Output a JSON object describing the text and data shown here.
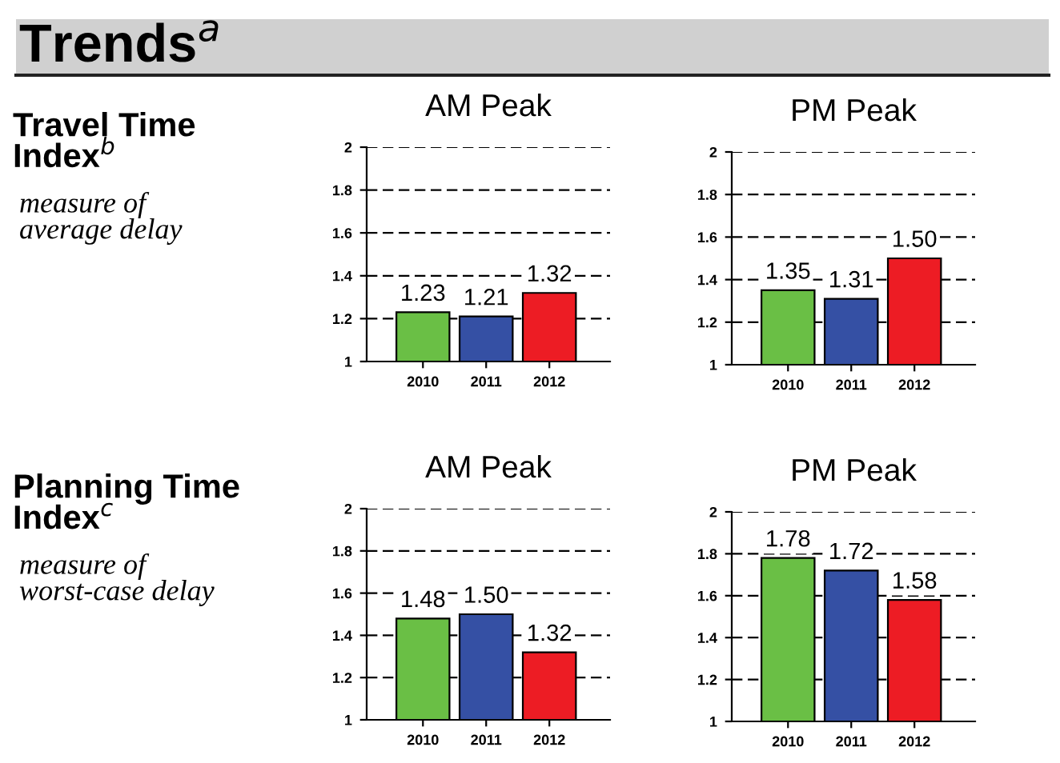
{
  "chart_data": [
    {
      "type": "bar",
      "title": "AM Peak",
      "categories": [
        "2010",
        "2011",
        "2012"
      ],
      "values": [
        1.23,
        1.21,
        1.32
      ],
      "value_labels": [
        "1.23",
        "1.21",
        "1.32"
      ],
      "colors": [
        "#6abf45",
        "#3550a4",
        "#ed1c24"
      ],
      "ylim": [
        1,
        2
      ],
      "yticks": [
        1,
        1.2,
        1.4,
        1.6,
        1.8,
        2
      ],
      "grid": "y",
      "annotations": [
        "Trends$^{a}$",
        "Travel Time\nIndex$^{b}$",
        "measure of\naverage delay"
      ]
    },
    {
      "type": "bar",
      "title": "PM Peak",
      "categories": [
        "2010",
        "2011",
        "2012"
      ],
      "values": [
        1.35,
        1.31,
        1.5
      ],
      "value_labels": [
        "1.35",
        "1.31",
        "1.50"
      ],
      "colors": [
        "#6abf45",
        "#3550a4",
        "#ed1c24"
      ],
      "ylim": [
        1,
        2
      ],
      "yticks": [
        1,
        1.2,
        1.4,
        1.6,
        1.8,
        2
      ],
      "grid": "y"
    },
    {
      "type": "bar",
      "title": "AM Peak",
      "categories": [
        "2010",
        "2011",
        "2012"
      ],
      "values": [
        1.48,
        1.5,
        1.32
      ],
      "value_labels": [
        "1.48",
        "1.50",
        "1.32"
      ],
      "colors": [
        "#6abf45",
        "#3550a4",
        "#ed1c24"
      ],
      "ylim": [
        1,
        2
      ],
      "yticks": [
        1,
        1.2,
        1.4,
        1.6,
        1.8,
        2
      ],
      "grid": "y",
      "annotations": [
        "Planning Time\nIndex$^{c}$",
        "measure of\nworst-case delay"
      ]
    },
    {
      "type": "bar",
      "title": "PM Peak",
      "categories": [
        "2010",
        "2011",
        "2012"
      ],
      "values": [
        1.78,
        1.72,
        1.58
      ],
      "value_labels": [
        "1.78",
        "1.72",
        "1.58"
      ],
      "colors": [
        "#6abf45",
        "#3550a4",
        "#ed1c24"
      ],
      "ylim": [
        1,
        2
      ],
      "yticks": [
        1,
        1.2,
        1.4,
        1.6,
        1.8,
        2
      ],
      "grid": "y"
    }
  ]
}
